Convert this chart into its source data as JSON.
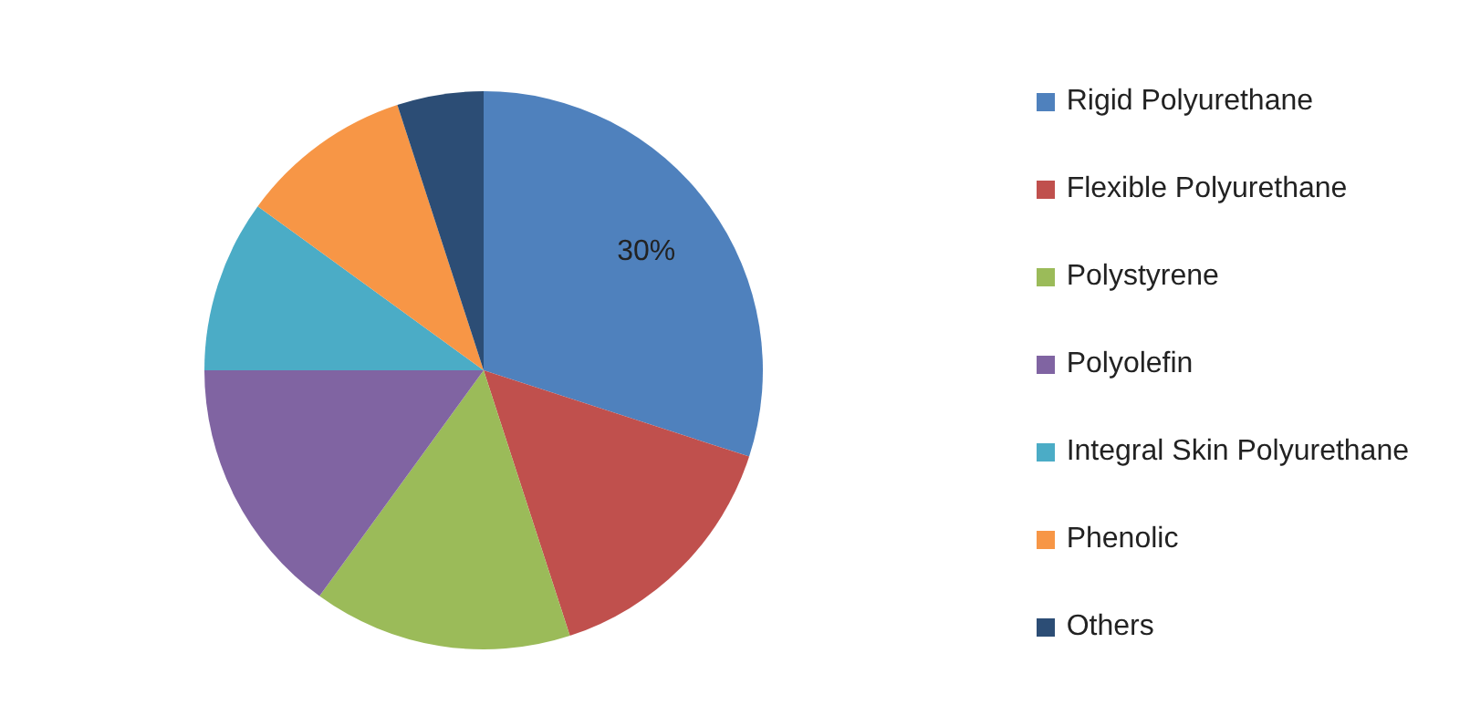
{
  "chart_data": {
    "type": "pie",
    "categories": [
      "Rigid Polyurethane",
      "Flexible Polyurethane",
      "Polystyrene",
      "Polyolefin",
      "Integral Skin Polyurethane",
      "Phenolic",
      "Others"
    ],
    "values": [
      30,
      15,
      15,
      15,
      10,
      10,
      5
    ],
    "colors": [
      "#4f81bd",
      "#c0504d",
      "#9bbb59",
      "#8064a2",
      "#4bacc6",
      "#f79646",
      "#2c4d75"
    ],
    "value_labels": [
      "30%",
      null,
      null,
      null,
      null,
      null,
      null
    ],
    "legend": "right"
  }
}
